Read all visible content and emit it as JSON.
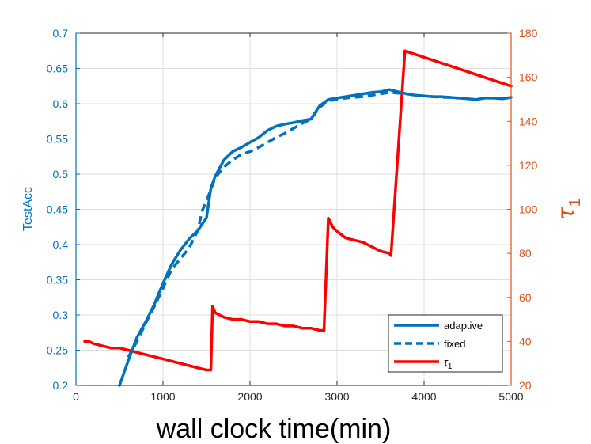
{
  "chart_data": {
    "type": "line",
    "xlabel": "wall clock time(min)",
    "ylabel_left": "TestAcc",
    "ylabel_right": "τ",
    "ylabel_right_sub": "1",
    "xlim": [
      0,
      5000
    ],
    "ylim_left": [
      0.2,
      0.7
    ],
    "ylim_right": [
      20,
      180
    ],
    "grid": true,
    "legend_placement": "bottom-right",
    "x_ticks": [
      0,
      1000,
      2000,
      3000,
      4000,
      5000
    ],
    "y_left_ticks": [
      "0.2",
      "0.25",
      "0.3",
      "0.35",
      "0.4",
      "0.45",
      "0.5",
      "0.55",
      "0.6",
      "0.65",
      "0.7"
    ],
    "y_right_ticks": [
      20,
      40,
      60,
      80,
      100,
      120,
      140,
      160,
      180
    ],
    "colors": {
      "left_axis": "#0072BD",
      "right_axis": "#D95319",
      "adaptive": "#0072BD",
      "fixed": "#0072BD",
      "tau": "#FF0000"
    },
    "series": [
      {
        "name": "adaptive",
        "axis": "left",
        "style": "solid",
        "x": [
          500,
          600,
          700,
          800,
          900,
          1000,
          1100,
          1200,
          1300,
          1400,
          1500,
          1550,
          1600,
          1700,
          1800,
          1900,
          2000,
          2100,
          2200,
          2300,
          2400,
          2500,
          2600,
          2700,
          2800,
          2900,
          3000,
          3100,
          3200,
          3300,
          3400,
          3500,
          3600,
          3700,
          3800,
          3900,
          4000,
          4100,
          4200,
          4300,
          4400,
          4500,
          4600,
          4700,
          4800,
          4900,
          5000
        ],
        "values": [
          0.2,
          0.235,
          0.268,
          0.29,
          0.315,
          0.345,
          0.372,
          0.392,
          0.408,
          0.42,
          0.438,
          0.48,
          0.497,
          0.52,
          0.532,
          0.538,
          0.545,
          0.552,
          0.562,
          0.568,
          0.571,
          0.573,
          0.576,
          0.578,
          0.597,
          0.606,
          0.608,
          0.61,
          0.612,
          0.614,
          0.616,
          0.617,
          0.62,
          0.617,
          0.614,
          0.612,
          0.611,
          0.61,
          0.61,
          0.609,
          0.608,
          0.607,
          0.606,
          0.608,
          0.608,
          0.607,
          0.609
        ]
      },
      {
        "name": "fixed",
        "axis": "left",
        "style": "dashed",
        "x": [
          600,
          700,
          800,
          900,
          1000,
          1100,
          1200,
          1300,
          1400,
          1450,
          1500,
          1550,
          1600,
          1700,
          1800,
          1900,
          2000,
          2100,
          2200,
          2300,
          2400,
          2500,
          2600,
          2700,
          2800,
          2900,
          3000,
          3100,
          3200,
          3300,
          3400,
          3500,
          3600,
          3700,
          3800,
          3900,
          4000,
          4100,
          4200,
          4300,
          4400
        ],
        "values": [
          0.24,
          0.262,
          0.288,
          0.312,
          0.338,
          0.365,
          0.38,
          0.395,
          0.42,
          0.448,
          0.462,
          0.478,
          0.495,
          0.51,
          0.52,
          0.528,
          0.532,
          0.538,
          0.545,
          0.552,
          0.558,
          0.565,
          0.572,
          0.578,
          0.595,
          0.604,
          0.606,
          0.608,
          0.609,
          0.61,
          0.612,
          0.614,
          0.616,
          0.615,
          0.614,
          0.612,
          0.611,
          0.61,
          0.609,
          0.609,
          0.608
        ]
      },
      {
        "name": "τ",
        "name_sub": "1",
        "axis": "right",
        "style": "solid",
        "x": [
          100,
          150,
          200,
          300,
          400,
          500,
          600,
          700,
          800,
          900,
          1000,
          1100,
          1200,
          1300,
          1400,
          1500,
          1550,
          1570,
          1600,
          1700,
          1800,
          1900,
          2000,
          2100,
          2200,
          2300,
          2400,
          2500,
          2600,
          2700,
          2800,
          2850,
          2900,
          2950,
          3000,
          3100,
          3200,
          3300,
          3400,
          3500,
          3600,
          3620,
          3780,
          5000
        ],
        "values": [
          40,
          40,
          39,
          38,
          37,
          37,
          36,
          35,
          34,
          33,
          32,
          31,
          30,
          29,
          28,
          27,
          27,
          56,
          53,
          51,
          50,
          50,
          49,
          49,
          48,
          48,
          47,
          47,
          46,
          46,
          45,
          45,
          96,
          92,
          90,
          87,
          86,
          85,
          83,
          81,
          80,
          79,
          172,
          156
        ]
      }
    ]
  }
}
